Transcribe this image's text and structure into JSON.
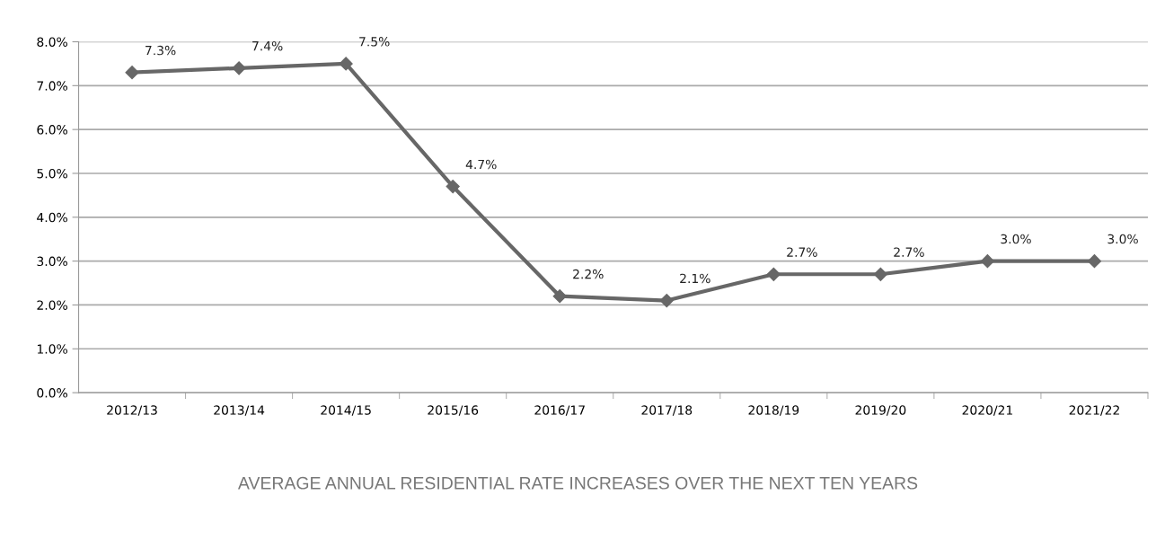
{
  "chart_data": {
    "type": "line",
    "title": "AVERAGE ANNUAL RESIDENTIAL RATE INCREASES OVER THE NEXT TEN YEARS",
    "categories": [
      "2012/13",
      "2013/14",
      "2014/15",
      "2015/16",
      "2016/17",
      "2017/18",
      "2018/19",
      "2019/20",
      "2020/21",
      "2021/22"
    ],
    "series": [
      {
        "color": "#676767",
        "values": [
          7.3,
          7.4,
          7.5,
          4.7,
          2.2,
          2.1,
          2.7,
          2.7,
          3.0,
          3.0
        ],
        "value_labels": [
          "7.3%",
          "7.4%",
          "7.5%",
          "4.7%",
          "2.2%",
          "2.1%",
          "2.7%",
          "2.7%",
          "3.0%",
          "3.0%"
        ]
      }
    ],
    "ylim": [
      0,
      8
    ],
    "yticks": [
      {
        "value": 0,
        "label": "0.0%"
      },
      {
        "value": 1,
        "label": "1.0%"
      },
      {
        "value": 2,
        "label": "2.0%"
      },
      {
        "value": 3,
        "label": "3.0%"
      },
      {
        "value": 4,
        "label": "4.0%"
      },
      {
        "value": 5,
        "label": "5.0%"
      },
      {
        "value": 6,
        "label": "6.0%"
      },
      {
        "value": 7,
        "label": "7.0%"
      },
      {
        "value": 8,
        "label": "8.0%"
      }
    ],
    "grid": "y",
    "marker": "diamond",
    "line_style": "solid",
    "legend": false
  }
}
